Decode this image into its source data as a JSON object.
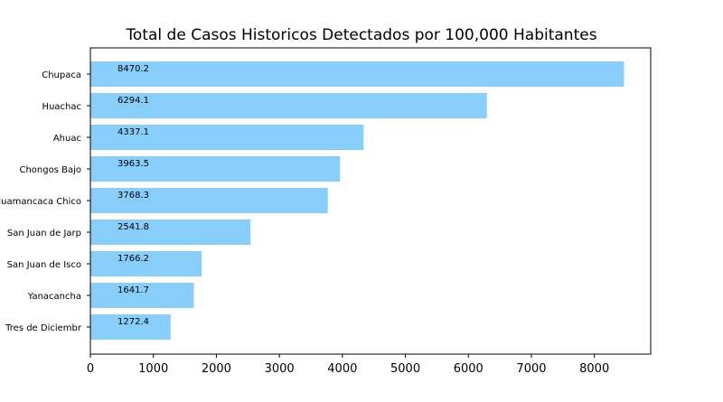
{
  "chart_data": {
    "type": "bar",
    "orientation": "horizontal",
    "title": "Total de Casos Historicos Detectados por 100,000 Habitantes",
    "xlabel": "",
    "ylabel": "",
    "categories": [
      "Chupaca",
      "Huachac",
      "Ahuac",
      "Chongos Bajo",
      "Huamancaca Chico",
      "San Juan de Jarp",
      "San Juan de Isco",
      "Yanacancha",
      "Tres de Diciembr"
    ],
    "values": [
      8470.2,
      6294.1,
      4337.1,
      3963.5,
      3768.3,
      2541.8,
      1766.2,
      1641.7,
      1272.4
    ],
    "data_labels": [
      "8470.2",
      "6294.1",
      "4337.1",
      "3963.5",
      "3768.3",
      "2541.8",
      "1766.2",
      "1641.7",
      "1272.4"
    ],
    "xlim": [
      0,
      8894
    ],
    "xticks": [
      0,
      1000,
      2000,
      3000,
      4000,
      5000,
      6000,
      7000,
      8000
    ],
    "xtick_labels": [
      "0",
      "1000",
      "2000",
      "3000",
      "4000",
      "5000",
      "6000",
      "7000",
      "8000"
    ],
    "grid": false,
    "colors": {
      "bar": "#87CEFA",
      "axis": "#000000",
      "background": "#ffffff"
    }
  }
}
